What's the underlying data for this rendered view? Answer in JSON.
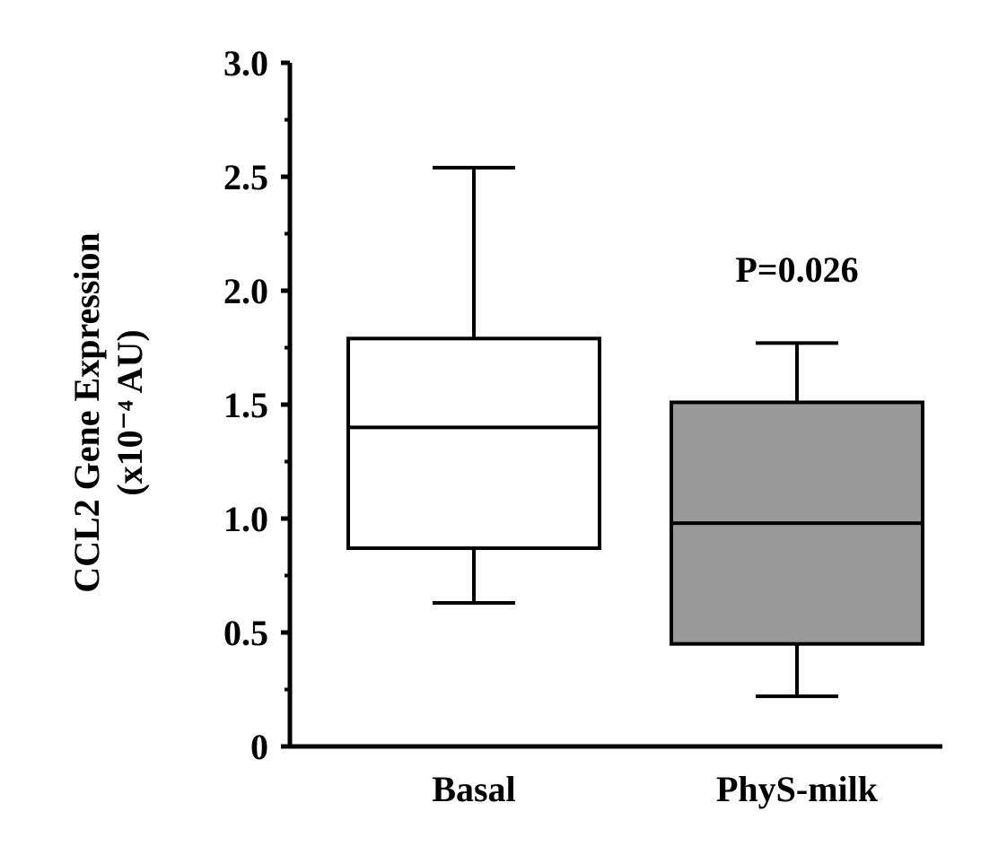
{
  "chart_data": {
    "type": "box",
    "ylabel_line1": "CCL2 Gene Expression",
    "ylabel_line2": "(x10⁻⁴ AU)",
    "ylim": [
      0,
      3.0
    ],
    "yticks": [
      {
        "value": 0,
        "label": "0"
      },
      {
        "value": 0.5,
        "label": "0.5"
      },
      {
        "value": 1.0,
        "label": "1.0"
      },
      {
        "value": 1.5,
        "label": "1.5"
      },
      {
        "value": 2.0,
        "label": "2.0"
      },
      {
        "value": 2.5,
        "label": "2.5"
      },
      {
        "value": 3.0,
        "label": "3.0"
      }
    ],
    "categories": [
      "Basal",
      "PhyS-milk"
    ],
    "boxes": [
      {
        "category": "Basal",
        "whisker_low": 0.63,
        "q1": 0.87,
        "median": 1.4,
        "q3": 1.79,
        "whisker_high": 2.54,
        "fill": "#ffffff"
      },
      {
        "category": "PhyS-milk",
        "whisker_low": 0.22,
        "q1": 0.45,
        "median": 0.98,
        "q3": 1.51,
        "whisker_high": 1.77,
        "fill": "#999999"
      }
    ],
    "annotations": [
      {
        "text": "P=0.026",
        "category": "PhyS-milk"
      }
    ]
  }
}
